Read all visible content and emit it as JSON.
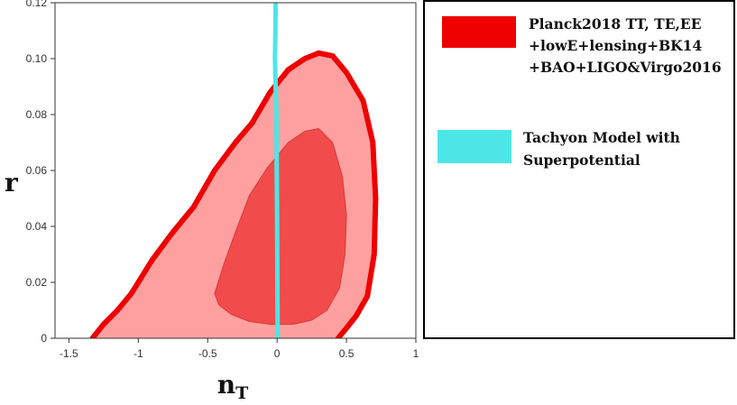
{
  "chart_data": {
    "type": "contour",
    "title": "",
    "xlabel": "n",
    "xlabel_sub": "T",
    "ylabel": "r",
    "xlim": [
      -1.6,
      1.0
    ],
    "ylim": [
      0,
      0.12
    ],
    "x_ticks": [
      -1.5,
      -1,
      -0.5,
      0,
      0.5,
      1
    ],
    "x_tick_labels": [
      "-1.5",
      "-1",
      "-0.5",
      "0",
      "0.5",
      "1"
    ],
    "y_ticks": [
      0,
      0.02,
      0.04,
      0.06,
      0.08,
      0.1,
      0.12
    ],
    "y_tick_labels": [
      "0",
      "0.02",
      "0.04",
      "0.06",
      "0.08",
      "0.10",
      "0.12"
    ],
    "grid": false,
    "legend_position": "right",
    "series": [
      {
        "name": "Planck2018 TT, TE,EE +lowE+lensing+BK14 +BAO+LIGO&Virgo2016",
        "legend_lines": [
          "Planck2018 TT, TE,EE",
          "+lowE+lensing+BK14",
          "+BAO+LIGO&Virgo2016"
        ],
        "kind": "confidence-contours",
        "fill_outer": "#ffa0a0",
        "fill_inner": "#f24b4b",
        "edge_color": "#ee0000",
        "outer_contour": [
          [
            -1.33,
            0.0
          ],
          [
            -1.25,
            0.005
          ],
          [
            -1.15,
            0.01
          ],
          [
            -1.05,
            0.016
          ],
          [
            -0.9,
            0.028
          ],
          [
            -0.75,
            0.038
          ],
          [
            -0.6,
            0.047
          ],
          [
            -0.45,
            0.06
          ],
          [
            -0.3,
            0.07
          ],
          [
            -0.18,
            0.077
          ],
          [
            -0.05,
            0.088
          ],
          [
            0.08,
            0.096
          ],
          [
            0.2,
            0.1
          ],
          [
            0.3,
            0.102
          ],
          [
            0.4,
            0.101
          ],
          [
            0.5,
            0.095
          ],
          [
            0.62,
            0.085
          ],
          [
            0.69,
            0.07
          ],
          [
            0.71,
            0.05
          ],
          [
            0.7,
            0.03
          ],
          [
            0.65,
            0.015
          ],
          [
            0.57,
            0.008
          ],
          [
            0.49,
            0.003
          ],
          [
            0.44,
            0.0
          ]
        ],
        "inner_contour": [
          [
            -0.45,
            0.016
          ],
          [
            -0.38,
            0.027
          ],
          [
            -0.3,
            0.038
          ],
          [
            -0.2,
            0.051
          ],
          [
            -0.07,
            0.061
          ],
          [
            0.08,
            0.07
          ],
          [
            0.2,
            0.074
          ],
          [
            0.3,
            0.075
          ],
          [
            0.4,
            0.07
          ],
          [
            0.47,
            0.058
          ],
          [
            0.5,
            0.044
          ],
          [
            0.49,
            0.03
          ],
          [
            0.45,
            0.018
          ],
          [
            0.36,
            0.01
          ],
          [
            0.25,
            0.0065
          ],
          [
            0.12,
            0.005
          ],
          [
            -0.05,
            0.005
          ],
          [
            -0.2,
            0.006
          ],
          [
            -0.33,
            0.0085
          ],
          [
            -0.42,
            0.012
          ]
        ]
      },
      {
        "name": "Tachyon Model with Superpotential",
        "legend_lines": [
          "Tachyon Model with",
          "Superpotential"
        ],
        "kind": "line",
        "color": "#4de6e6",
        "points": [
          [
            -0.01,
            0.12
          ],
          [
            -0.012,
            0.11
          ],
          [
            -0.015,
            0.1
          ],
          [
            -0.01,
            0.09
          ],
          [
            -0.005,
            0.08
          ],
          [
            -0.002,
            0.06
          ],
          [
            0.0,
            0.04
          ],
          [
            0.002,
            0.02
          ],
          [
            0.004,
            0.0
          ]
        ]
      }
    ]
  }
}
